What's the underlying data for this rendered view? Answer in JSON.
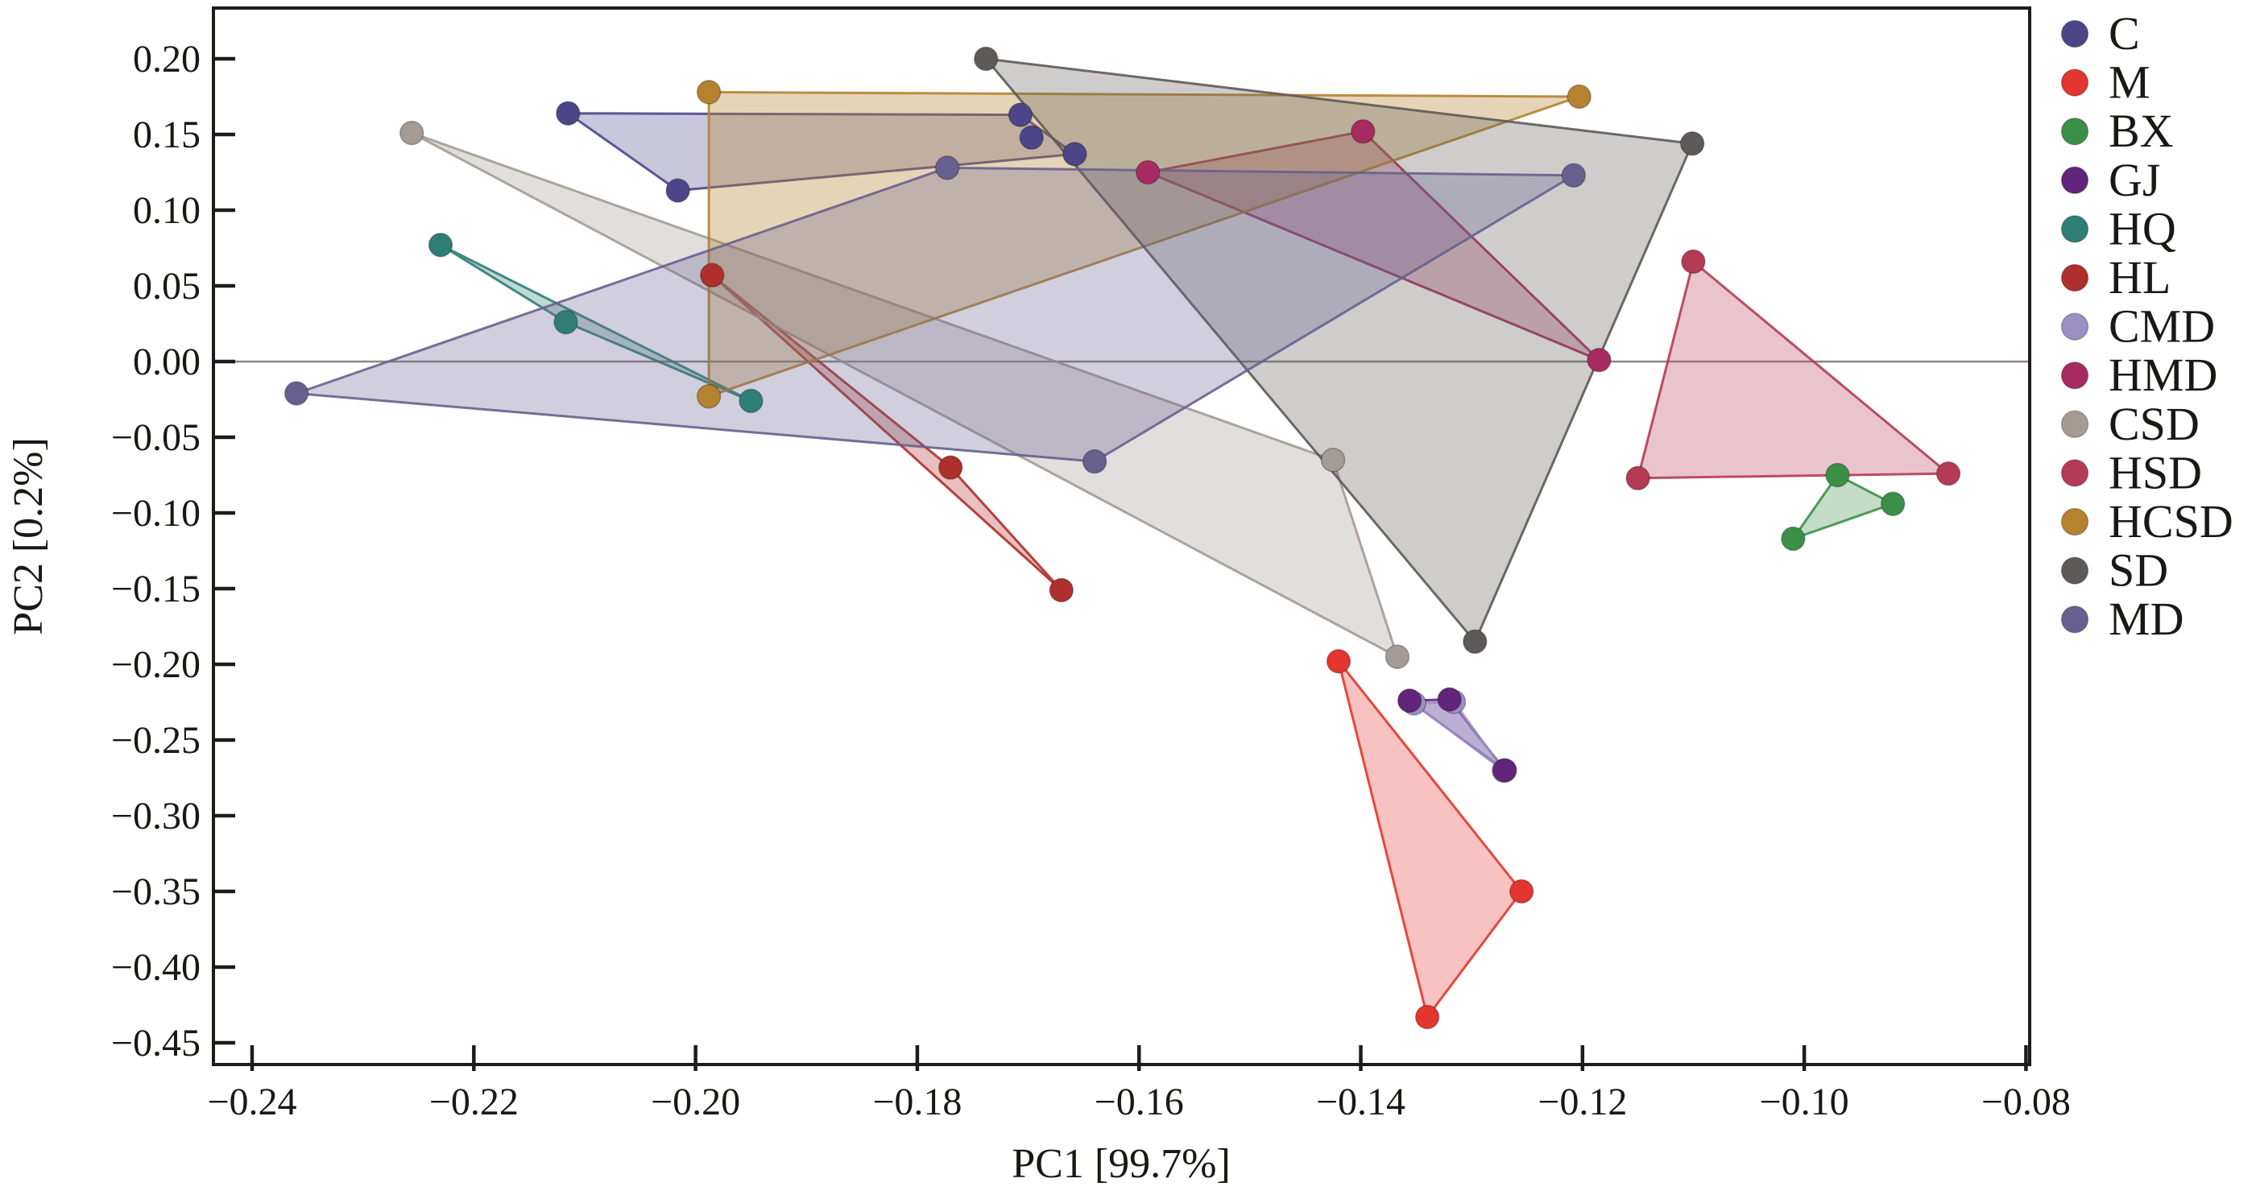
{
  "chart_data": {
    "type": "scatter",
    "title": "",
    "xlabel": "PC1 [99.7%]",
    "ylabel": "PC2 [0.2%]",
    "xlim": [
      -0.2435,
      -0.0796
    ],
    "ylim": [
      -0.4645,
      0.2335
    ],
    "x_ticks": [
      -0.24,
      -0.22,
      -0.2,
      -0.18,
      -0.16,
      -0.14,
      -0.12,
      -0.1,
      -0.08
    ],
    "y_ticks": [
      0.2,
      0.15,
      0.1,
      0.05,
      0.0,
      -0.05,
      -0.1,
      -0.15,
      -0.2,
      -0.25,
      -0.3,
      -0.35,
      -0.4,
      -0.45
    ],
    "zero_line_y": 0.0,
    "grid": false,
    "legend_position": "right-outside",
    "hulls": true,
    "series": [
      {
        "name": "C",
        "color": "#4c4689",
        "points": [
          [
            -0.2115,
            0.164
          ],
          [
            -0.2016,
            0.113
          ],
          [
            -0.1707,
            0.163
          ],
          [
            -0.1697,
            0.148
          ],
          [
            -0.1658,
            0.137
          ]
        ]
      },
      {
        "name": "M",
        "color": "#e43530",
        "points": [
          [
            -0.142,
            -0.198
          ],
          [
            -0.1255,
            -0.35
          ],
          [
            -0.134,
            -0.433
          ]
        ]
      },
      {
        "name": "BX",
        "color": "#3b9047",
        "points": [
          [
            -0.097,
            -0.075
          ],
          [
            -0.092,
            -0.094
          ],
          [
            -0.101,
            -0.117
          ]
        ]
      },
      {
        "name": "GJ",
        "color": "#63257b",
        "points": [
          [
            -0.1356,
            -0.224
          ],
          [
            -0.132,
            -0.2232
          ],
          [
            -0.127,
            -0.27
          ]
        ]
      },
      {
        "name": "HQ",
        "color": "#2f7e76",
        "points": [
          [
            -0.223,
            0.077
          ],
          [
            -0.2117,
            0.026
          ],
          [
            -0.195,
            -0.026
          ]
        ]
      },
      {
        "name": "HL",
        "color": "#ae2f2b",
        "points": [
          [
            -0.1985,
            0.057
          ],
          [
            -0.177,
            -0.07
          ],
          [
            -0.167,
            -0.151
          ]
        ]
      },
      {
        "name": "CMD",
        "color": "#9c8fc6",
        "points": [
          [
            -0.1352,
            -0.2258
          ],
          [
            -0.1316,
            -0.2248
          ],
          [
            -0.1271,
            -0.2702
          ]
        ]
      },
      {
        "name": "HMD",
        "color": "#a72b60",
        "points": [
          [
            -0.1592,
            0.125
          ],
          [
            -0.1398,
            0.152
          ],
          [
            -0.1185,
            0.001
          ]
        ]
      },
      {
        "name": "CSD",
        "color": "#a39b94",
        "points": [
          [
            -0.2256,
            0.151
          ],
          [
            -0.1425,
            -0.065
          ],
          [
            -0.1367,
            -0.195
          ]
        ]
      },
      {
        "name": "HSD",
        "color": "#b53b55",
        "points": [
          [
            -0.11,
            0.066
          ],
          [
            -0.115,
            -0.077
          ],
          [
            -0.087,
            -0.074
          ]
        ]
      },
      {
        "name": "HCSD",
        "color": "#b5822f",
        "points": [
          [
            -0.1988,
            0.178
          ],
          [
            -0.1203,
            0.175
          ],
          [
            -0.1988,
            -0.023
          ]
        ]
      },
      {
        "name": "SD",
        "color": "#5e5a57",
        "points": [
          [
            -0.1738,
            0.2
          ],
          [
            -0.1101,
            0.144
          ],
          [
            -0.1297,
            -0.185
          ]
        ]
      },
      {
        "name": "MD",
        "color": "#67608e",
        "points": [
          [
            -0.236,
            -0.021
          ],
          [
            -0.1773,
            0.128
          ],
          [
            -0.1208,
            0.123
          ],
          [
            -0.164,
            -0.066
          ]
        ]
      }
    ]
  },
  "legend": {
    "items": [
      "C",
      "M",
      "BX",
      "GJ",
      "HQ",
      "HL",
      "CMD",
      "HMD",
      "CSD",
      "HSD",
      "HCSD",
      "SD",
      "MD"
    ]
  }
}
